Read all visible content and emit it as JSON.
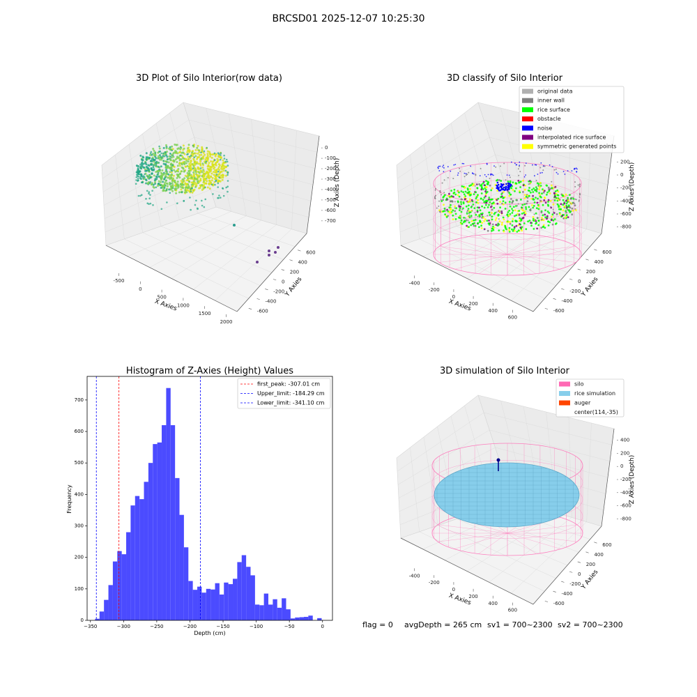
{
  "figure": {
    "suptitle": "BRCSD01 2025-12-07 10:25:30",
    "footer": {
      "flag": "flag = 0",
      "avg_depth": "avgDepth = 265 cm",
      "sv1": "sv1 = 700~2300",
      "sv2": "sv2 = 700~2300"
    }
  },
  "chart_data": [
    {
      "type": "scatter",
      "title": "3D Plot of Silo Interior(row data)",
      "xlabel": "X Axies",
      "ylabel": "Y Axies",
      "zlabel": "Z Axies (Depth)",
      "x_ticks": [
        "-500",
        "0",
        "500",
        "1000",
        "1500",
        "2000"
      ],
      "y_ticks": [
        "-600",
        "-400",
        "-200",
        "0",
        "200",
        "400",
        "600"
      ],
      "z_ticks": [
        "0",
        "-100",
        "-200",
        "-300",
        "-400",
        "-500",
        "-600",
        "-700"
      ],
      "colors": {
        "cloud_light": "#d8e219",
        "cloud_dark": "#21a685",
        "outlier_teal": "#2a9d8f",
        "outlier_purple": "#6a3d8f"
      }
    },
    {
      "type": "scatter",
      "title": "3D classify of Silo Interior",
      "xlabel": "X Axies",
      "ylabel": "Y Axies",
      "zlabel": "Z Axies (Depth)",
      "x_ticks": [
        "-400",
        "-200",
        "0",
        "200",
        "400",
        "600"
      ],
      "y_ticks": [
        "-600",
        "-400",
        "-200",
        "0",
        "200",
        "400",
        "600"
      ],
      "z_ticks": [
        "200",
        "0",
        "-200",
        "-400",
        "-600",
        "-800"
      ],
      "legend": {
        "location": "upper-right",
        "items": [
          {
            "label": "original data",
            "color": "#b0b0b0"
          },
          {
            "label": "inner wall",
            "color": "#808080"
          },
          {
            "label": "rice surface",
            "color": "#00ff00"
          },
          {
            "label": "obstacle",
            "color": "#ff0000"
          },
          {
            "label": "noise",
            "color": "#0000ff"
          },
          {
            "label": "interpolated rice surface",
            "color": "#800080"
          },
          {
            "label": "symmetric generated points",
            "color": "#ffff00"
          }
        ]
      }
    },
    {
      "type": "bar",
      "title": "Histogram of Z-Axies (Height) Values",
      "xlabel": "Depth (cm)",
      "ylabel": "Frequency",
      "xlim": [
        -355,
        15
      ],
      "ylim": [
        0,
        775
      ],
      "x_ticks": [
        -350,
        -300,
        -250,
        -200,
        -150,
        -100,
        -50,
        0
      ],
      "y_ticks": [
        0,
        100,
        200,
        300,
        400,
        500,
        600,
        700
      ],
      "bin_start": -343,
      "bin_width": 6.7,
      "values": [
        5,
        28,
        65,
        112,
        187,
        220,
        210,
        280,
        365,
        395,
        385,
        440,
        500,
        560,
        565,
        620,
        738,
        620,
        452,
        335,
        232,
        125,
        97,
        107,
        88,
        100,
        98,
        118,
        82,
        120,
        115,
        132,
        185,
        207,
        170,
        143,
        50,
        48,
        85,
        50,
        67,
        40,
        70,
        35,
        6,
        9,
        10,
        11,
        15,
        0,
        7
      ],
      "bar_color": "#4b4bff",
      "vlines": [
        {
          "label": "first_peak: -307.01 cm",
          "x": -307.01,
          "color": "#ff0000"
        },
        {
          "label": "Upper_limit: -184.29 cm",
          "x": -184.29,
          "color": "#0000ff"
        },
        {
          "label": "Lower_limit: -341.10 cm",
          "x": -341.1,
          "color": "#0000ff"
        }
      ],
      "legend": {
        "location": "upper-right"
      }
    },
    {
      "type": "scatter",
      "title": "3D simulation of Silo Interior",
      "xlabel": "X Axies",
      "ylabel": "Y Axies",
      "zlabel": "Z Axies (Depth)",
      "x_ticks": [
        "-400",
        "-200",
        "0",
        "200",
        "400",
        "600"
      ],
      "y_ticks": [
        "-600",
        "-400",
        "-200",
        "0",
        "200",
        "400",
        "600"
      ],
      "z_ticks": [
        "400",
        "200",
        "0",
        "-200",
        "-400",
        "-600",
        "-800"
      ],
      "legend": {
        "location": "upper-right",
        "items": [
          {
            "label": "silo",
            "color": "#ff69b4"
          },
          {
            "label": "rice simulation",
            "color": "#87ceeb"
          },
          {
            "label": "auger",
            "color": "#ff4500"
          },
          {
            "label": "center(114,-35)",
            "color": ""
          }
        ]
      }
    }
  ]
}
